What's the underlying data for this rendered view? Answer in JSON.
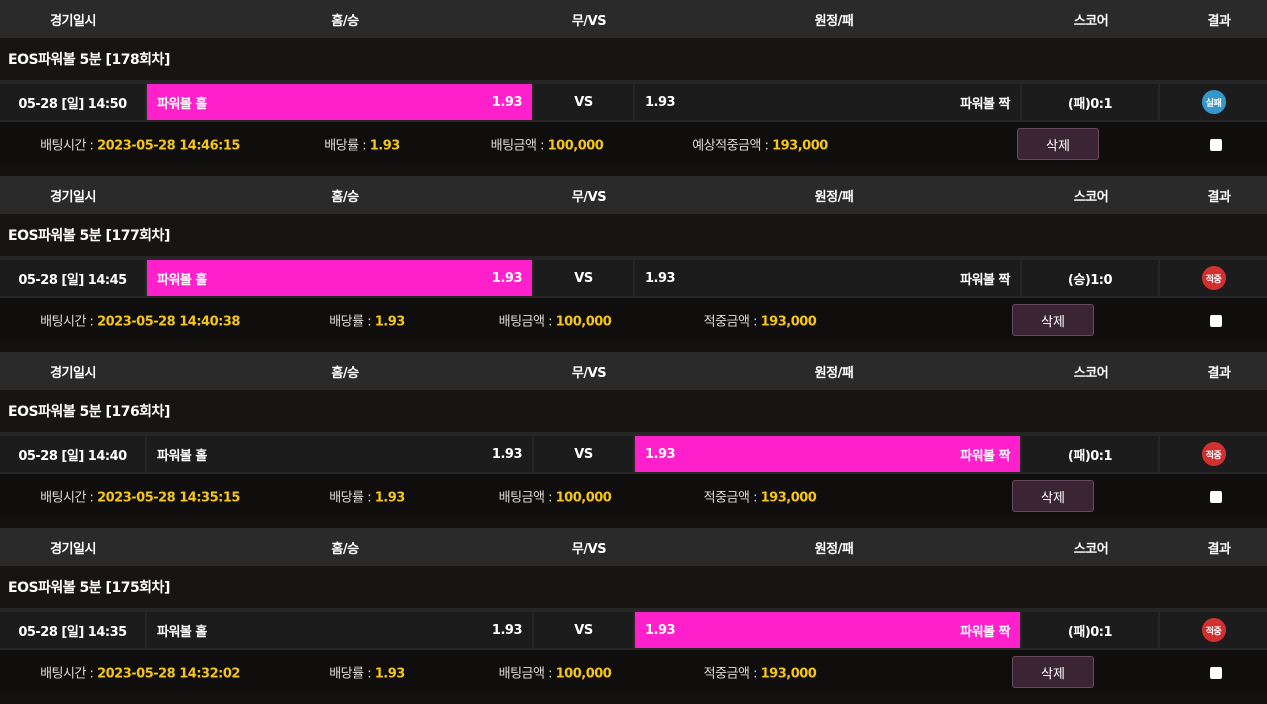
{
  "headers": [
    "경기일시",
    "홈/승",
    "무/VS",
    "원정/패",
    "스코어",
    "결과"
  ],
  "colors": {
    "selected": "#ff1fcb",
    "fail": "#3399cc",
    "win": "#d32f2f",
    "highlight": "#f5c518"
  },
  "bets": [
    {
      "title": "EOS파워볼 5분  [178회차]",
      "date": "05-28 [일] 14:50",
      "home_label": "파워볼 홀",
      "home_odds": "1.93",
      "vs": "VS",
      "away_odds": "1.93",
      "away_label": "파워볼 짝",
      "selected": "home",
      "score": "(패)0:1",
      "result": "실패",
      "result_type": "fail",
      "bet_time_label": "배팅시간 : ",
      "bet_time": "2023-05-28 14:46:15",
      "odds_label": "배당률 : ",
      "odds": "1.93",
      "amount_label": "배팅금액 : ",
      "amount": "100,000",
      "win_label": "예상적중금액 : ",
      "win_amount": "193,000",
      "delete": "삭제"
    },
    {
      "title": "EOS파워볼 5분  [177회차]",
      "date": "05-28 [일] 14:45",
      "home_label": "파워볼 홀",
      "home_odds": "1.93",
      "vs": "VS",
      "away_odds": "1.93",
      "away_label": "파워볼 짝",
      "selected": "home",
      "score": "(승)1:0",
      "result": "적중",
      "result_type": "win",
      "bet_time_label": "배팅시간 : ",
      "bet_time": "2023-05-28 14:40:38",
      "odds_label": "배당률 : ",
      "odds": "1.93",
      "amount_label": "배팅금액 : ",
      "amount": "100,000",
      "win_label": "적중금액 : ",
      "win_amount": "193,000",
      "delete": "삭제"
    },
    {
      "title": "EOS파워볼 5분  [176회차]",
      "date": "05-28 [일] 14:40",
      "home_label": "파워볼 홀",
      "home_odds": "1.93",
      "vs": "VS",
      "away_odds": "1.93",
      "away_label": "파워볼 짝",
      "selected": "away",
      "score": "(패)0:1",
      "result": "적중",
      "result_type": "win",
      "bet_time_label": "배팅시간 : ",
      "bet_time": "2023-05-28 14:35:15",
      "odds_label": "배당률 : ",
      "odds": "1.93",
      "amount_label": "배팅금액 : ",
      "amount": "100,000",
      "win_label": "적중금액 : ",
      "win_amount": "193,000",
      "delete": "삭제"
    },
    {
      "title": "EOS파워볼 5분  [175회차]",
      "date": "05-28 [일] 14:35",
      "home_label": "파워볼 홀",
      "home_odds": "1.93",
      "vs": "VS",
      "away_odds": "1.93",
      "away_label": "파워볼 짝",
      "selected": "away",
      "score": "(패)0:1",
      "result": "적중",
      "result_type": "win",
      "bet_time_label": "배팅시간 : ",
      "bet_time": "2023-05-28 14:32:02",
      "odds_label": "배당률 : ",
      "odds": "1.93",
      "amount_label": "배팅금액 : ",
      "amount": "100,000",
      "win_label": "적중금액 : ",
      "win_amount": "193,000",
      "delete": "삭제"
    }
  ]
}
